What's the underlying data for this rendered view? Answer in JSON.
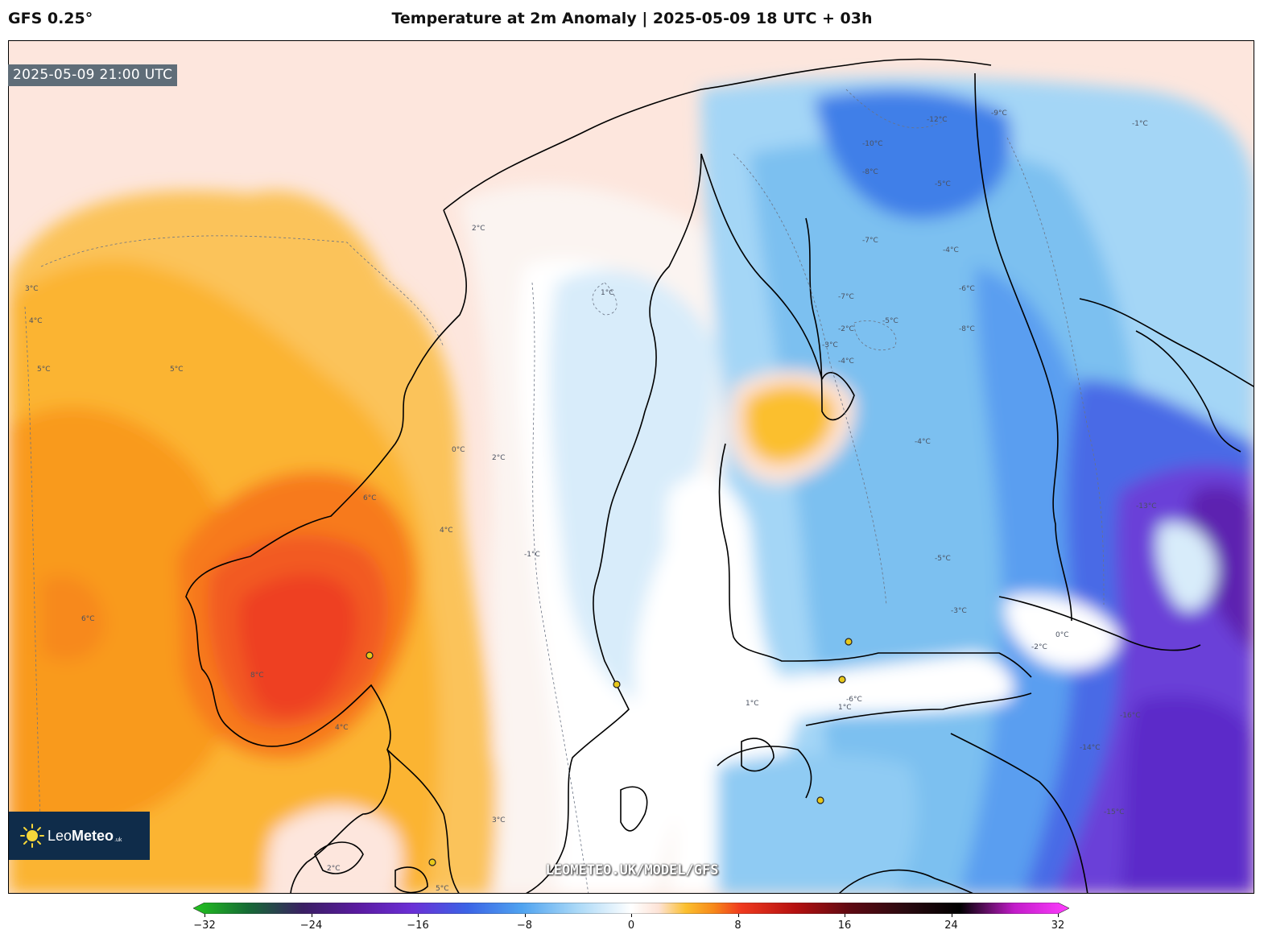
{
  "header": {
    "model": "GFS 0.25°",
    "title": "Temperature at 2m Anomaly | 2025-05-09 18 UTC + 03h"
  },
  "map": {
    "timestamp": "2025-05-09 21:00 UTC",
    "watermark": "LEOMETEO.UK/MODEL/GFS",
    "isotherm_labels": [
      "-12°C",
      "-10°C",
      "-9°C",
      "-8°C",
      "-8°C",
      "-7°C",
      "-7°C",
      "-6°C",
      "-6°C",
      "-5°C",
      "-5°C",
      "-5°C",
      "-4°C",
      "-4°C",
      "-4°C",
      "-3°C",
      "-3°C",
      "-2°C",
      "-2°C",
      "-1°C",
      "-1°C",
      "0°C",
      "0°C",
      "1°C",
      "1°C",
      "1°C",
      "2°C",
      "2°C",
      "2°C",
      "3°C",
      "3°C",
      "4°C",
      "4°C",
      "4°C",
      "5°C",
      "5°C",
      "5°C",
      "6°C",
      "6°C",
      "8°C",
      "-13°C",
      "-14°C",
      "-15°C",
      "-16°C"
    ]
  },
  "logo": {
    "brand_light": "Leo",
    "brand_bold": "Meteo",
    "suffix": ".uk"
  },
  "colorbar": {
    "vmin": -32,
    "vmax": 32,
    "tick_values": [
      -32,
      -24,
      -16,
      -8,
      0,
      8,
      16,
      24,
      32
    ],
    "tick_labels": [
      "−32",
      "−24",
      "−16",
      "−8",
      "0",
      "8",
      "16",
      "24",
      "32"
    ],
    "stops": [
      {
        "value": -32,
        "color": "#22c41e"
      },
      {
        "value": -28,
        "color": "#166b35"
      },
      {
        "value": -24,
        "color": "#3a1f63"
      },
      {
        "value": -20,
        "color": "#5a1aa0"
      },
      {
        "value": -16,
        "color": "#6b2fd6"
      },
      {
        "value": -12,
        "color": "#3b63e6"
      },
      {
        "value": -8,
        "color": "#4fa3f0"
      },
      {
        "value": -4,
        "color": "#a9d8f7"
      },
      {
        "value": 0,
        "color": "#ffffff"
      },
      {
        "value": 2,
        "color": "#fde3d6"
      },
      {
        "value": 4,
        "color": "#fbbf2e"
      },
      {
        "value": 6,
        "color": "#f7891a"
      },
      {
        "value": 8,
        "color": "#f03a1e"
      },
      {
        "value": 12,
        "color": "#b51010"
      },
      {
        "value": 16,
        "color": "#5e0a12"
      },
      {
        "value": 20,
        "color": "#2a0a10"
      },
      {
        "value": 24,
        "color": "#000000"
      },
      {
        "value": 28,
        "color": "#c21bc9"
      },
      {
        "value": 32,
        "color": "#ff3dff"
      }
    ]
  },
  "cities": [
    "city-marker"
  ]
}
